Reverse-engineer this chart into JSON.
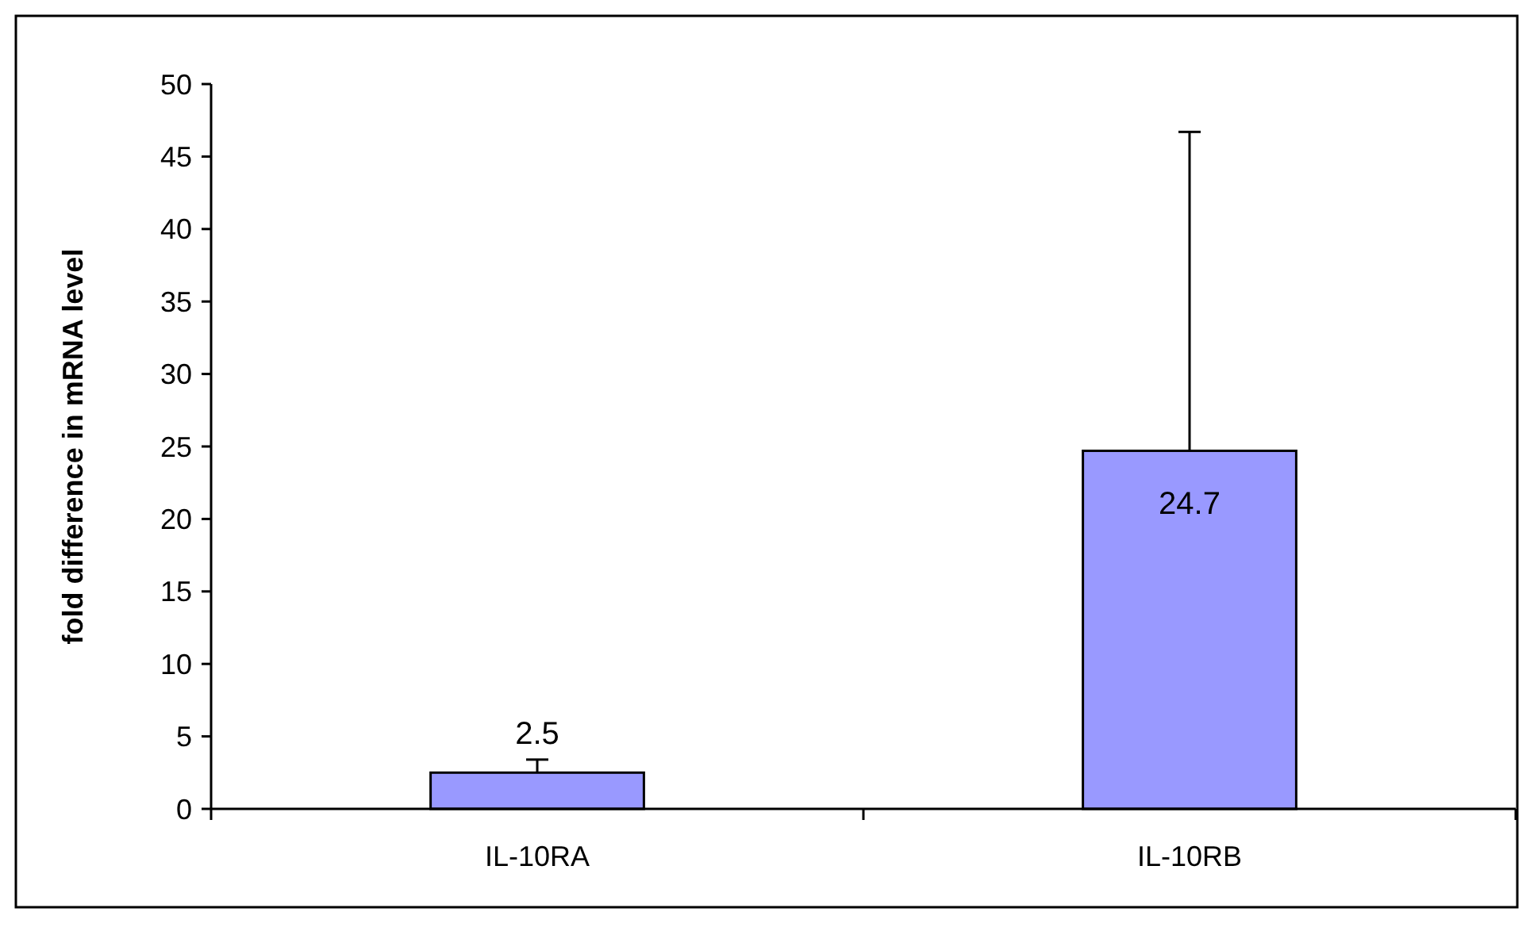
{
  "chart_data": {
    "type": "bar",
    "ylabel": "fold difference in mRNA level",
    "categories": [
      "IL-10RA",
      "IL-10RB"
    ],
    "values": [
      2.5,
      24.7
    ],
    "color": "#9999ff",
    "errors": [
      [
        2.5,
        3.4
      ],
      [
        24.7,
        46.7
      ]
    ],
    "data_labels": true,
    "ylim": [
      0,
      50
    ],
    "yticks": [
      0,
      5,
      10,
      15,
      20,
      25,
      30,
      35,
      40,
      45,
      50
    ],
    "grid": false
  }
}
